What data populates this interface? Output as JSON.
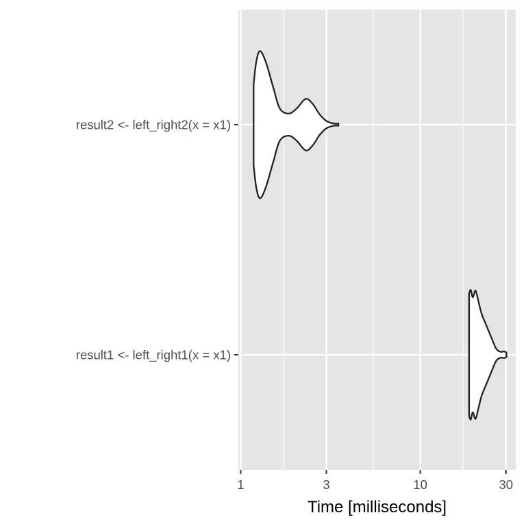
{
  "chart_data": {
    "type": "violin",
    "orientation": "horizontal",
    "xlabel": "Time [milliseconds]",
    "ylabel": "",
    "x_scale": "log10",
    "xlim": [
      0.97,
      34
    ],
    "x_ticks": [
      1,
      3,
      10,
      30
    ],
    "x_tick_labels": [
      "1",
      "3",
      "10",
      "30"
    ],
    "grid": true,
    "colors": {
      "panel": "#e5e5e5",
      "grid": "#ffffff",
      "violin_fill": "#ffffff",
      "violin_stroke": "#222222"
    },
    "series": [
      {
        "name": "result2 <- left_right2(x = x1)",
        "profile": [
          [
            1.18,
            0.55
          ],
          [
            1.22,
            0.85
          ],
          [
            1.28,
            1.0
          ],
          [
            1.38,
            0.85
          ],
          [
            1.52,
            0.5
          ],
          [
            1.65,
            0.22
          ],
          [
            1.85,
            0.15
          ],
          [
            2.05,
            0.22
          ],
          [
            2.3,
            0.35
          ],
          [
            2.52,
            0.28
          ],
          [
            2.75,
            0.14
          ],
          [
            3.0,
            0.05
          ],
          [
            3.3,
            0.015
          ],
          [
            3.5,
            0.015
          ]
        ]
      },
      {
        "name": "result1 <- left_right1(x = x1)",
        "profile": [
          [
            18.7,
            0.83
          ],
          [
            19.1,
            0.88
          ],
          [
            19.6,
            0.78
          ],
          [
            20.3,
            0.87
          ],
          [
            21.1,
            0.72
          ],
          [
            22.0,
            0.55
          ],
          [
            23.5,
            0.38
          ],
          [
            25.0,
            0.22
          ],
          [
            26.5,
            0.08
          ],
          [
            28.0,
            0.04
          ],
          [
            29.3,
            0.045
          ],
          [
            30.2,
            0.03
          ]
        ]
      }
    ]
  }
}
